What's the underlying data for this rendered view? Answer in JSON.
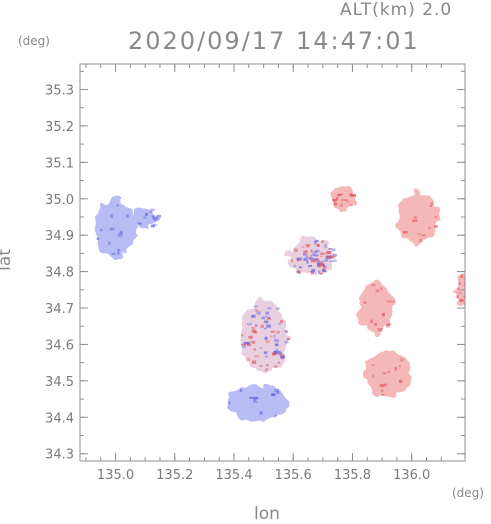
{
  "header": {
    "altitude_label": "ALT(km) 2.0",
    "datetime": "2020/09/17 14:47:01"
  },
  "chart_data": {
    "type": "heatmap",
    "title": "2020/09/17 14:47:01",
    "xlabel": "lon",
    "ylabel": "lat",
    "x_unit": "(deg)",
    "y_unit": "(deg)",
    "xlim": [
      134.88,
      136.18
    ],
    "ylim": [
      34.28,
      35.37
    ],
    "xticks": [
      135.0,
      135.2,
      135.4,
      135.6,
      135.8,
      136.0
    ],
    "xtick_labels": [
      "135.0",
      "135.2",
      "135.4",
      "135.6",
      "135.8",
      "136.0"
    ],
    "yticks": [
      34.3,
      34.4,
      34.5,
      34.6,
      34.7,
      34.8,
      34.9,
      35.0,
      35.1,
      35.2,
      35.3
    ],
    "ytick_labels": [
      "34.3",
      "34.4",
      "34.5",
      "34.6",
      "34.7",
      "34.8",
      "34.9",
      "35.0",
      "35.1",
      "35.2",
      "35.3"
    ],
    "colors": {
      "positive": "#f4b8b8",
      "negative": "#b8bcf4",
      "strong_positive": "#e05050",
      "strong_negative": "#6060e0",
      "axis": "#909090"
    },
    "regions": [
      {
        "sign": "negative",
        "lon": 135.0,
        "lat": 34.92,
        "rx": 0.07,
        "ry": 0.08
      },
      {
        "sign": "negative",
        "lon": 135.1,
        "lat": 34.95,
        "rx": 0.04,
        "ry": 0.03
      },
      {
        "sign": "positive",
        "lon": 135.77,
        "lat": 35.0,
        "rx": 0.04,
        "ry": 0.035
      },
      {
        "sign": "positive",
        "lon": 136.02,
        "lat": 34.95,
        "rx": 0.07,
        "ry": 0.07
      },
      {
        "sign": "positive",
        "lon": 135.88,
        "lat": 34.7,
        "rx": 0.06,
        "ry": 0.07
      },
      {
        "sign": "positive",
        "lon": 135.92,
        "lat": 34.52,
        "rx": 0.08,
        "ry": 0.06
      },
      {
        "sign": "mixed",
        "lon": 135.5,
        "lat": 34.62,
        "rx": 0.08,
        "ry": 0.1
      },
      {
        "sign": "negative",
        "lon": 135.48,
        "lat": 34.44,
        "rx": 0.1,
        "ry": 0.05
      },
      {
        "sign": "mixed",
        "lon": 135.66,
        "lat": 34.84,
        "rx": 0.08,
        "ry": 0.05
      },
      {
        "sign": "positive",
        "lon": 136.17,
        "lat": 34.75,
        "rx": 0.02,
        "ry": 0.05
      }
    ]
  }
}
